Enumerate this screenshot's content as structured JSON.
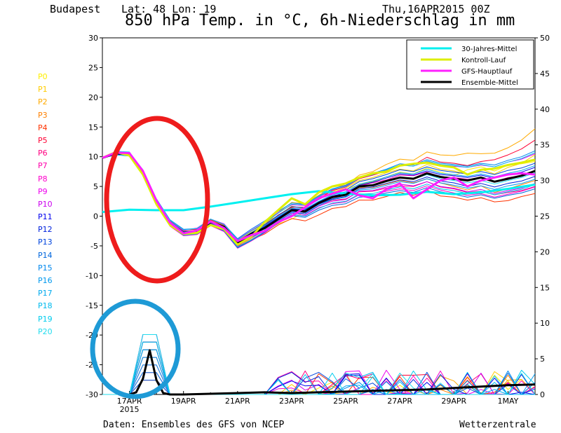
{
  "header": {
    "location": "Budapest",
    "coords": "Lat: 48 Lon: 19",
    "run": "Thu,16APR2015 00Z",
    "title": "850 hPa Temp. in °C, 6h-Niederschlag in mm"
  },
  "members": [
    {
      "label": "P0",
      "color": "#ffee00"
    },
    {
      "label": "P1",
      "color": "#ffcc00"
    },
    {
      "label": "P2",
      "color": "#ffaa00"
    },
    {
      "label": "P3",
      "color": "#ff8000"
    },
    {
      "label": "P4",
      "color": "#ff3300"
    },
    {
      "label": "P5",
      "color": "#ff0033"
    },
    {
      "label": "P6",
      "color": "#ff0080"
    },
    {
      "label": "P7",
      "color": "#ff00aa"
    },
    {
      "label": "P8",
      "color": "#ff00cc"
    },
    {
      "label": "P9",
      "color": "#ee00ee"
    },
    {
      "label": "P10",
      "color": "#cc00ee"
    },
    {
      "label": "P11",
      "color": "#0000ee"
    },
    {
      "label": "P12",
      "color": "#0022dd"
    },
    {
      "label": "P13",
      "color": "#0044dd"
    },
    {
      "label": "P14",
      "color": "#0066dd"
    },
    {
      "label": "P15",
      "color": "#0088ee"
    },
    {
      "label": "P16",
      "color": "#0099ee"
    },
    {
      "label": "P17",
      "color": "#00aaee"
    },
    {
      "label": "P18",
      "color": "#00bbee"
    },
    {
      "label": "P19",
      "color": "#00ccee"
    },
    {
      "label": "P20",
      "color": "#22ddee"
    }
  ],
  "footer": {
    "source": "Daten: Ensembles des GFS von NCEP",
    "brand": "Wetterzentrale"
  },
  "chart_data": {
    "type": "line",
    "title": "850 hPa Temp. in °C, 6h-Niederschlag in mm",
    "x_unit": "days from 16APR 00Z",
    "x_range": [
      0,
      16
    ],
    "x_ticks": [
      {
        "x": 1,
        "label": "17APR",
        "sub": "2015"
      },
      {
        "x": 3,
        "label": "19APR"
      },
      {
        "x": 5,
        "label": "21APR"
      },
      {
        "x": 7,
        "label": "23APR"
      },
      {
        "x": 9,
        "label": "25APR"
      },
      {
        "x": 11,
        "label": "27APR"
      },
      {
        "x": 13,
        "label": "29APR"
      },
      {
        "x": 15,
        "label": "1MAY"
      }
    ],
    "y_left": {
      "min": -30,
      "max": 30,
      "ticks": [
        -30,
        -25,
        -20,
        -15,
        -10,
        -5,
        0,
        5,
        10,
        15,
        20,
        25,
        30
      ]
    },
    "y_right": {
      "min": 0,
      "max": 50,
      "ticks": [
        0,
        5,
        10,
        15,
        20,
        25,
        30,
        35,
        40,
        45,
        50
      ]
    },
    "legend": [
      {
        "name": "30-Jahres-Mittel",
        "color": "#00f0f0",
        "width": 3
      },
      {
        "name": "Kontroll-Lauf",
        "color": "#ddee00",
        "width": 3
      },
      {
        "name": "GFS-Hauptlauf",
        "color": "#ff20ff",
        "width": 3
      },
      {
        "name": "Ensemble-Mittel",
        "color": "#000000",
        "width": 3
      }
    ],
    "series": [
      {
        "name": "30-Jahres-Mittel",
        "color": "#00f0f0",
        "width": 3,
        "x": [
          0,
          1,
          2,
          3,
          4,
          5,
          6,
          7,
          8,
          9,
          10,
          11,
          12,
          13,
          14,
          15,
          16
        ],
        "y": [
          0.7,
          1.1,
          1.0,
          1.0,
          1.6,
          2.3,
          3.0,
          3.7,
          4.2,
          3.8,
          3.5,
          3.6,
          4.1,
          3.7,
          4.0,
          4.6,
          5.3
        ]
      },
      {
        "name": "Ensemble-Mittel",
        "color": "#000000",
        "width": 3,
        "x": [
          0,
          0.5,
          1,
          1.5,
          2,
          2.5,
          3,
          3.5,
          4,
          4.5,
          5,
          5.5,
          6,
          6.5,
          7,
          7.5,
          8,
          8.5,
          9,
          9.5,
          10,
          10.5,
          11,
          11.5,
          12,
          12.5,
          13,
          13.5,
          14,
          14.5,
          15,
          15.5,
          16
        ],
        "y": [
          9.8,
          10.6,
          10.4,
          7.5,
          2.5,
          -1.2,
          -2.8,
          -2.6,
          -1.0,
          -1.8,
          -4.5,
          -3.0,
          -2.0,
          -0.5,
          1.0,
          0.8,
          2.2,
          3.2,
          3.6,
          5.0,
          5.2,
          5.9,
          6.5,
          6.3,
          7.2,
          6.6,
          6.3,
          6.0,
          6.5,
          5.8,
          6.3,
          6.8,
          7.6
        ]
      },
      {
        "name": "Kontroll-Lauf",
        "color": "#ddee00",
        "width": 3,
        "x": [
          0,
          0.5,
          1,
          1.5,
          2,
          2.5,
          3,
          3.5,
          4,
          4.5,
          5,
          5.5,
          6,
          6.5,
          7,
          7.5,
          8,
          8.5,
          9,
          9.5,
          10,
          10.5,
          11,
          11.5,
          12,
          12.5,
          13,
          13.5,
          14,
          14.5,
          15,
          15.5,
          16
        ],
        "y": [
          9.8,
          10.8,
          10.2,
          7.0,
          2.0,
          -1.5,
          -3.0,
          -2.8,
          -1.5,
          -2.2,
          -4.8,
          -3.5,
          -1.0,
          1.0,
          3.0,
          2.0,
          4.0,
          5.0,
          5.5,
          6.5,
          7.2,
          7.5,
          8.5,
          8.8,
          9.0,
          8.5,
          8.2,
          7.0,
          7.8,
          8.0,
          8.6,
          9.0,
          9.5
        ]
      },
      {
        "name": "GFS-Hauptlauf",
        "color": "#ff20ff",
        "width": 3,
        "x": [
          0,
          0.5,
          1,
          1.5,
          2,
          2.5,
          3,
          3.5,
          4,
          4.5,
          5,
          5.5,
          6,
          6.5,
          7,
          7.5,
          8,
          8.5,
          9,
          9.5,
          10,
          10.5,
          11,
          11.5,
          12,
          12.5,
          13,
          13.5,
          14,
          14.5,
          15,
          15.5,
          16
        ],
        "y": [
          9.8,
          10.7,
          10.6,
          7.6,
          2.6,
          -1.1,
          -2.9,
          -2.4,
          -0.9,
          -2.0,
          -4.2,
          -3.2,
          -2.5,
          -1.0,
          0.0,
          1.5,
          3.0,
          3.8,
          4.5,
          3.5,
          3.0,
          4.5,
          5.5,
          3.0,
          4.5,
          6.0,
          6.5,
          5.0,
          6.0,
          6.5,
          7.0,
          7.2,
          7.0
        ]
      }
    ],
    "ensemble_members": {
      "x_step": 0.5,
      "y": [
        [
          9.8,
          10.7,
          10.3,
          7.2,
          2.2,
          -1.6,
          -3.1,
          -2.9,
          -1.4,
          -2.1,
          -4.9,
          -3.9,
          -2.6,
          -1.3,
          -0.5,
          0.7,
          2.2,
          3.6,
          4.5,
          5.3,
          5.8,
          6.6,
          7.4,
          7.1,
          8.1,
          7.4,
          6.8,
          7.8,
          8.3,
          7.6,
          8.6,
          8.8,
          9.2
        ],
        [
          9.8,
          10.5,
          10.5,
          7.0,
          2.8,
          -1.0,
          -2.6,
          -2.3,
          -0.7,
          -1.6,
          -4.2,
          -2.6,
          -1.1,
          0.1,
          1.7,
          1.2,
          3.3,
          4.1,
          4.7,
          6.0,
          6.5,
          7.3,
          7.9,
          7.6,
          8.7,
          7.9,
          7.6,
          7.0,
          7.9,
          7.1,
          8.2,
          8.9,
          10.3
        ],
        [
          9.8,
          10.9,
          10.1,
          7.8,
          2.3,
          -1.4,
          -2.8,
          -2.5,
          -1.2,
          -2.2,
          -4.0,
          -2.5,
          -1.4,
          0.6,
          2.3,
          2.1,
          3.5,
          4.9,
          5.2,
          6.9,
          7.5,
          8.7,
          9.6,
          9.4,
          10.8,
          10.3,
          10.2,
          10.6,
          10.5,
          10.6,
          11.5,
          12.8,
          14.7
        ],
        [
          9.8,
          10.4,
          10.3,
          7.3,
          2.6,
          -1.5,
          -3.0,
          -2.7,
          -0.8,
          -1.7,
          -4.5,
          -2.9,
          -1.5,
          0.1,
          1.4,
          0.9,
          2.3,
          3.1,
          3.5,
          4.8,
          4.8,
          5.4,
          6.0,
          5.6,
          6.3,
          5.6,
          5.0,
          4.4,
          5.1,
          4.0,
          4.6,
          5.3,
          6.0
        ],
        [
          9.8,
          10.6,
          10.7,
          7.5,
          2.4,
          -0.9,
          -2.5,
          -2.4,
          -1.1,
          -2.4,
          -5.1,
          -4.0,
          -3.0,
          -1.5,
          -0.4,
          -0.8,
          0.2,
          1.3,
          1.6,
          2.7,
          2.7,
          3.3,
          4.0,
          3.5,
          4.4,
          3.4,
          3.2,
          2.7,
          3.1,
          2.4,
          2.6,
          3.3,
          3.8
        ],
        [
          9.8,
          10.6,
          10.6,
          7.7,
          2.7,
          -0.8,
          -2.3,
          -2.2,
          -0.6,
          -1.5,
          -4.1,
          -2.9,
          -1.6,
          0.2,
          1.5,
          1.5,
          2.9,
          4.3,
          4.9,
          6.3,
          6.9,
          7.6,
          8.6,
          8.6,
          9.9,
          9.1,
          8.9,
          8.5,
          9.2,
          9.5,
          10.3,
          11.3,
          12.8
        ],
        [
          9.8,
          10.8,
          10.2,
          7.2,
          2.3,
          -1.3,
          -2.9,
          -2.6,
          -1.0,
          -1.9,
          -4.6,
          -3.1,
          -2.0,
          -0.8,
          0.6,
          0.4,
          1.8,
          2.7,
          2.9,
          4.1,
          4.2,
          4.7,
          5.1,
          5.0,
          5.8,
          4.9,
          4.6,
          4.0,
          4.2,
          3.6,
          4.0,
          4.3,
          5.0
        ],
        [
          9.8,
          10.5,
          10.4,
          7.4,
          2.5,
          -1.1,
          -2.8,
          -2.8,
          -1.2,
          -2.0,
          -4.4,
          -3.2,
          -1.8,
          -0.3,
          1.1,
          0.9,
          2.2,
          3.2,
          3.6,
          5.1,
          5.6,
          6.1,
          6.9,
          6.8,
          7.4,
          6.6,
          6.5,
          6.2,
          6.4,
          5.8,
          6.5,
          6.8,
          7.6
        ],
        [
          9.8,
          10.9,
          10.5,
          7.6,
          2.1,
          -1.7,
          -3.3,
          -3.1,
          -1.6,
          -2.6,
          -5.4,
          -4.2,
          -2.8,
          -1.1,
          0.2,
          0.1,
          1.4,
          2.1,
          2.4,
          3.6,
          3.5,
          4.2,
          4.6,
          4.3,
          5.1,
          4.4,
          3.9,
          3.5,
          3.8,
          3.2,
          3.7,
          4.2,
          4.9
        ],
        [
          9.8,
          10.3,
          10.6,
          7.1,
          2.9,
          -0.7,
          -2.4,
          -2.0,
          -0.5,
          -1.3,
          -3.9,
          -2.4,
          -1.0,
          0.6,
          1.9,
          1.8,
          3.2,
          4.4,
          5.1,
          6.4,
          7.0,
          7.7,
          8.6,
          8.4,
          9.2,
          8.7,
          8.4,
          8.2,
          8.6,
          8.3,
          9.1,
          9.6,
          10.5
        ],
        [
          9.8,
          10.7,
          10.4,
          7.3,
          2.4,
          -1.4,
          -3.0,
          -2.9,
          -1.3,
          -2.3,
          -5.0,
          -3.7,
          -2.4,
          -0.9,
          0.5,
          0.3,
          1.7,
          2.5,
          2.8,
          4.2,
          4.3,
          4.9,
          5.4,
          5.1,
          5.8,
          5.0,
          4.7,
          4.1,
          4.5,
          3.8,
          4.3,
          4.7,
          5.5
        ],
        [
          9.8,
          10.6,
          10.5,
          7.4,
          2.6,
          -1.0,
          -2.7,
          -2.5,
          -0.9,
          -1.8,
          -4.3,
          -3.0,
          -1.7,
          -0.2,
          1.2,
          1.1,
          2.4,
          3.4,
          3.9,
          5.2,
          5.7,
          6.4,
          7.1,
          6.9,
          7.6,
          7.0,
          6.8,
          6.5,
          6.9,
          6.4,
          7.0,
          7.4,
          8.2
        ],
        [
          9.8,
          10.4,
          10.3,
          7.2,
          2.5,
          -1.2,
          -2.9,
          -2.6,
          -1.0,
          -1.9,
          -4.7,
          -3.4,
          -2.1,
          -0.6,
          0.8,
          0.6,
          2.0,
          2.9,
          3.3,
          4.6,
          4.9,
          5.5,
          6.1,
          5.8,
          6.6,
          5.9,
          5.6,
          5.0,
          5.5,
          4.9,
          5.5,
          5.9,
          6.7
        ],
        [
          9.8,
          10.8,
          10.6,
          7.6,
          2.7,
          -0.9,
          -2.6,
          -2.4,
          -0.8,
          -1.7,
          -4.3,
          -2.8,
          -1.4,
          0.1,
          1.6,
          1.4,
          2.8,
          3.9,
          4.4,
          5.8,
          6.3,
          7.0,
          7.8,
          7.5,
          8.3,
          7.7,
          7.4,
          7.1,
          7.5,
          7.0,
          7.7,
          8.1,
          8.9
        ],
        [
          9.8,
          10.5,
          10.2,
          7.0,
          2.2,
          -1.6,
          -3.2,
          -3.0,
          -1.5,
          -2.5,
          -5.3,
          -4.1,
          -2.7,
          -1.2,
          0.1,
          -0.2,
          1.0,
          1.8,
          2.1,
          3.2,
          3.3,
          3.9,
          4.3,
          4.0,
          4.8,
          4.1,
          3.7,
          3.2,
          3.6,
          3.0,
          3.5,
          3.9,
          4.6
        ],
        [
          9.8,
          10.7,
          10.7,
          7.8,
          2.9,
          -0.6,
          -2.2,
          -2.1,
          -0.5,
          -1.4,
          -3.8,
          -2.2,
          -0.8,
          0.8,
          2.2,
          2.0,
          3.4,
          4.6,
          5.2,
          6.6,
          7.2,
          7.9,
          8.8,
          8.6,
          9.5,
          8.9,
          8.7,
          8.4,
          8.9,
          8.6,
          9.4,
          10.0,
          11.0
        ],
        [
          9.8,
          10.6,
          10.4,
          7.3,
          2.4,
          -1.3,
          -3.0,
          -2.8,
          -1.2,
          -2.1,
          -4.8,
          -3.6,
          -2.3,
          -0.8,
          0.6,
          0.4,
          1.8,
          2.8,
          3.2,
          4.4,
          4.6,
          5.2,
          5.8,
          5.5,
          6.3,
          5.6,
          5.2,
          4.7,
          5.1,
          4.5,
          5.1,
          5.5,
          6.2
        ],
        [
          9.8,
          10.5,
          10.6,
          7.5,
          2.7,
          -0.9,
          -2.6,
          -2.4,
          -0.8,
          -1.8,
          -4.4,
          -3.0,
          -1.6,
          -0.1,
          1.3,
          1.2,
          2.5,
          3.6,
          4.1,
          5.4,
          5.9,
          6.6,
          7.3,
          7.1,
          7.9,
          7.2,
          7.0,
          6.7,
          7.1,
          6.6,
          7.2,
          7.7,
          8.5
        ],
        [
          9.8,
          10.3,
          10.1,
          7.0,
          2.3,
          -1.5,
          -3.2,
          -3.0,
          -1.4,
          -2.4,
          -5.2,
          -4.0,
          -2.6,
          -1.1,
          0.3,
          0.0,
          1.3,
          2.2,
          2.5,
          3.7,
          3.8,
          4.4,
          4.9,
          4.6,
          5.4,
          4.6,
          4.3,
          3.8,
          4.2,
          3.6,
          4.1,
          4.5,
          5.3
        ],
        [
          9.8,
          10.9,
          10.8,
          7.7,
          2.8,
          -0.7,
          -2.3,
          -2.1,
          -0.5,
          -1.4,
          -4.0,
          -2.5,
          -1.1,
          0.5,
          2.0,
          1.9,
          3.3,
          4.5,
          5.0,
          6.4,
          7.0,
          7.8,
          8.6,
          8.4,
          9.3,
          8.7,
          8.5,
          8.2,
          8.7,
          8.3,
          9.1,
          9.7,
          10.7
        ],
        [
          9.8,
          10.6,
          10.4,
          7.4,
          2.5,
          -1.1,
          -2.8,
          -2.6,
          -1.1,
          -2.0,
          -4.6,
          -3.3,
          -2.0,
          -0.5,
          0.9,
          0.7,
          2.1,
          3.1,
          3.5,
          4.9,
          5.2,
          5.8,
          6.5,
          6.2,
          7.0,
          6.3,
          6.0,
          5.6,
          6.0,
          5.4,
          6.0,
          6.5,
          7.3
        ]
      ]
    },
    "precip_mean": {
      "x": [
        1,
        1.25,
        1.5,
        1.75,
        2,
        2.25,
        2.5,
        3,
        4,
        5,
        6,
        7,
        8,
        9,
        10,
        11,
        12,
        13,
        14,
        15,
        16
      ],
      "y": [
        0,
        0.3,
        2.2,
        6.2,
        2.0,
        0.2,
        0,
        0,
        0.1,
        0.2,
        0.3,
        0.2,
        0.3,
        0.4,
        0.5,
        0.6,
        0.7,
        0.9,
        1.1,
        1.3,
        1.4
      ]
    }
  }
}
